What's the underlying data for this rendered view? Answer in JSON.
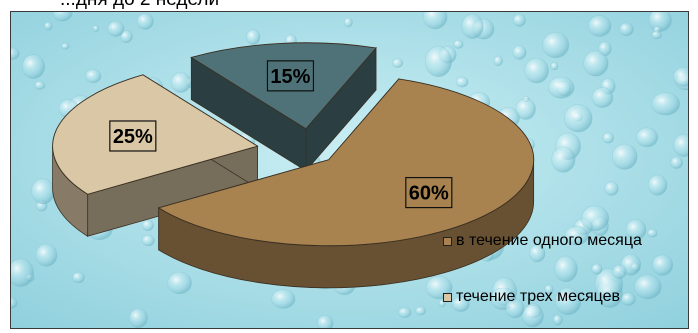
{
  "header_fragment": "...дня до 2 недели",
  "chart_data": {
    "type": "pie",
    "style": "3d-exploded",
    "slices": [
      {
        "label": "в течение одного месяца",
        "value": 60,
        "value_label": "60%",
        "color": "#a88350"
      },
      {
        "label": "течение трех месяцев",
        "value": 25,
        "value_label": "25%",
        "color": "#d9c7a6"
      },
      {
        "label": "",
        "value": 15,
        "value_label": "15%",
        "color": "#4f7278"
      }
    ],
    "legend": {
      "placement": "bottom-right",
      "entries": [
        {
          "label": "в течение одного месяца",
          "color": "#a88350"
        },
        {
          "label": "течение трех месяцев",
          "color": "#d9c7a6"
        }
      ]
    },
    "background": "water-droplet texture, light blue"
  }
}
